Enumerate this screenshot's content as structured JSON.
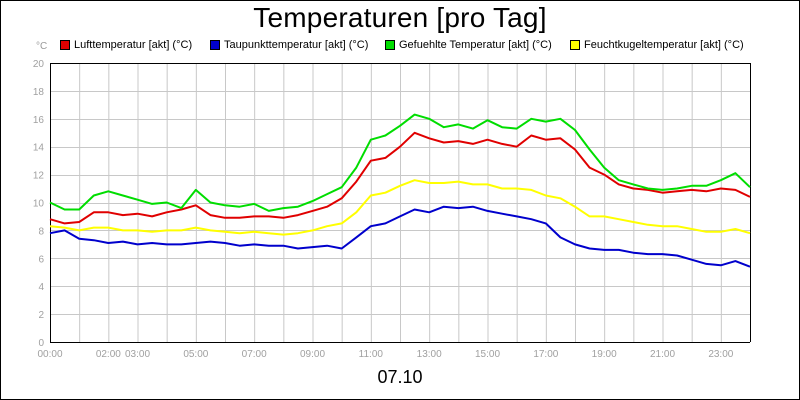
{
  "chart_data": {
    "type": "line",
    "title": "Temperaturen [pro Tag]",
    "y_unit": "°C",
    "date_label": "07.10",
    "ylim": [
      0,
      20
    ],
    "y_ticks": [
      0,
      2,
      4,
      6,
      8,
      10,
      12,
      14,
      16,
      18,
      20
    ],
    "xlim_hours": [
      0,
      24
    ],
    "x_tick_labels": [
      {
        "hour": 0,
        "label": "00:00"
      },
      {
        "hour": 2,
        "label": "02:00"
      },
      {
        "hour": 3,
        "label": "03:00"
      },
      {
        "hour": 5,
        "label": "05:00"
      },
      {
        "hour": 7,
        "label": "07:00"
      },
      {
        "hour": 9,
        "label": "09:00"
      },
      {
        "hour": 11,
        "label": "11:00"
      },
      {
        "hour": 13,
        "label": "13:00"
      },
      {
        "hour": 15,
        "label": "15:00"
      },
      {
        "hour": 17,
        "label": "17:00"
      },
      {
        "hour": 19,
        "label": "19:00"
      },
      {
        "hour": 21,
        "label": "21:00"
      },
      {
        "hour": 23,
        "label": "23:00"
      }
    ],
    "grid": true,
    "legend_position": "top",
    "series": [
      {
        "name": "Lufttemperatur [akt] (°C)",
        "color": "#e00000",
        "points": [
          [
            0,
            8.8
          ],
          [
            0.5,
            8.5
          ],
          [
            1,
            8.6
          ],
          [
            1.5,
            9.3
          ],
          [
            2,
            9.3
          ],
          [
            2.5,
            9.1
          ],
          [
            3,
            9.2
          ],
          [
            3.5,
            9.0
          ],
          [
            4,
            9.3
          ],
          [
            4.5,
            9.5
          ],
          [
            5,
            9.8
          ],
          [
            5.5,
            9.1
          ],
          [
            6,
            8.9
          ],
          [
            6.5,
            8.9
          ],
          [
            7,
            9.0
          ],
          [
            7.5,
            9.0
          ],
          [
            8,
            8.9
          ],
          [
            8.5,
            9.1
          ],
          [
            9,
            9.4
          ],
          [
            9.5,
            9.7
          ],
          [
            10,
            10.3
          ],
          [
            10.5,
            11.5
          ],
          [
            11,
            13.0
          ],
          [
            11.5,
            13.2
          ],
          [
            12,
            14.0
          ],
          [
            12.5,
            15.0
          ],
          [
            13,
            14.6
          ],
          [
            13.5,
            14.3
          ],
          [
            14,
            14.4
          ],
          [
            14.5,
            14.2
          ],
          [
            15,
            14.5
          ],
          [
            15.5,
            14.2
          ],
          [
            16,
            14.0
          ],
          [
            16.5,
            14.8
          ],
          [
            17,
            14.5
          ],
          [
            17.5,
            14.6
          ],
          [
            18,
            13.8
          ],
          [
            18.5,
            12.5
          ],
          [
            19,
            12.0
          ],
          [
            19.5,
            11.3
          ],
          [
            20,
            11.0
          ],
          [
            20.5,
            10.9
          ],
          [
            21,
            10.7
          ],
          [
            21.5,
            10.8
          ],
          [
            22,
            10.9
          ],
          [
            22.5,
            10.8
          ],
          [
            23,
            11.0
          ],
          [
            23.5,
            10.9
          ],
          [
            24,
            10.4
          ]
        ]
      },
      {
        "name": "Taupunkttemperatur [akt] (°C)",
        "color": "#0000cc",
        "points": [
          [
            0,
            7.8
          ],
          [
            0.5,
            8.0
          ],
          [
            1,
            7.4
          ],
          [
            1.5,
            7.3
          ],
          [
            2,
            7.1
          ],
          [
            2.5,
            7.2
          ],
          [
            3,
            7.0
          ],
          [
            3.5,
            7.1
          ],
          [
            4,
            7.0
          ],
          [
            4.5,
            7.0
          ],
          [
            5,
            7.1
          ],
          [
            5.5,
            7.2
          ],
          [
            6,
            7.1
          ],
          [
            6.5,
            6.9
          ],
          [
            7,
            7.0
          ],
          [
            7.5,
            6.9
          ],
          [
            8,
            6.9
          ],
          [
            8.5,
            6.7
          ],
          [
            9,
            6.8
          ],
          [
            9.5,
            6.9
          ],
          [
            10,
            6.7
          ],
          [
            10.5,
            7.5
          ],
          [
            11,
            8.3
          ],
          [
            11.5,
            8.5
          ],
          [
            12,
            9.0
          ],
          [
            12.5,
            9.5
          ],
          [
            13,
            9.3
          ],
          [
            13.5,
            9.7
          ],
          [
            14,
            9.6
          ],
          [
            14.5,
            9.7
          ],
          [
            15,
            9.4
          ],
          [
            15.5,
            9.2
          ],
          [
            16,
            9.0
          ],
          [
            16.5,
            8.8
          ],
          [
            17,
            8.5
          ],
          [
            17.5,
            7.5
          ],
          [
            18,
            7.0
          ],
          [
            18.5,
            6.7
          ],
          [
            19,
            6.6
          ],
          [
            19.5,
            6.6
          ],
          [
            20,
            6.4
          ],
          [
            20.5,
            6.3
          ],
          [
            21,
            6.3
          ],
          [
            21.5,
            6.2
          ],
          [
            22,
            5.9
          ],
          [
            22.5,
            5.6
          ],
          [
            23,
            5.5
          ],
          [
            23.5,
            5.8
          ],
          [
            24,
            5.4
          ]
        ]
      },
      {
        "name": "Gefuehlte Temperatur [akt] (°C)",
        "color": "#00dd00",
        "points": [
          [
            0,
            10.0
          ],
          [
            0.5,
            9.5
          ],
          [
            1,
            9.5
          ],
          [
            1.5,
            10.5
          ],
          [
            2,
            10.8
          ],
          [
            2.5,
            10.5
          ],
          [
            3,
            10.2
          ],
          [
            3.5,
            9.9
          ],
          [
            4,
            10.0
          ],
          [
            4.5,
            9.6
          ],
          [
            5,
            10.9
          ],
          [
            5.5,
            10.0
          ],
          [
            6,
            9.8
          ],
          [
            6.5,
            9.7
          ],
          [
            7,
            9.9
          ],
          [
            7.5,
            9.4
          ],
          [
            8,
            9.6
          ],
          [
            8.5,
            9.7
          ],
          [
            9,
            10.1
          ],
          [
            9.5,
            10.6
          ],
          [
            10,
            11.1
          ],
          [
            10.5,
            12.5
          ],
          [
            11,
            14.5
          ],
          [
            11.5,
            14.8
          ],
          [
            12,
            15.5
          ],
          [
            12.5,
            16.3
          ],
          [
            13,
            16.0
          ],
          [
            13.5,
            15.4
          ],
          [
            14,
            15.6
          ],
          [
            14.5,
            15.3
          ],
          [
            15,
            15.9
          ],
          [
            15.5,
            15.4
          ],
          [
            16,
            15.3
          ],
          [
            16.5,
            16.0
          ],
          [
            17,
            15.8
          ],
          [
            17.5,
            16.0
          ],
          [
            18,
            15.2
          ],
          [
            18.5,
            13.8
          ],
          [
            19,
            12.5
          ],
          [
            19.5,
            11.6
          ],
          [
            20,
            11.3
          ],
          [
            20.5,
            11.0
          ],
          [
            21,
            10.9
          ],
          [
            21.5,
            11.0
          ],
          [
            22,
            11.2
          ],
          [
            22.5,
            11.2
          ],
          [
            23,
            11.6
          ],
          [
            23.5,
            12.1
          ],
          [
            24,
            11.1
          ]
        ]
      },
      {
        "name": "Feuchtkugeltemperatur [akt] (°C)",
        "color": "#ffff00",
        "points": [
          [
            0,
            8.3
          ],
          [
            0.5,
            8.2
          ],
          [
            1,
            8.0
          ],
          [
            1.5,
            8.2
          ],
          [
            2,
            8.2
          ],
          [
            2.5,
            8.0
          ],
          [
            3,
            8.0
          ],
          [
            3.5,
            7.9
          ],
          [
            4,
            8.0
          ],
          [
            4.5,
            8.0
          ],
          [
            5,
            8.2
          ],
          [
            5.5,
            8.0
          ],
          [
            6,
            7.9
          ],
          [
            6.5,
            7.8
          ],
          [
            7,
            7.9
          ],
          [
            7.5,
            7.8
          ],
          [
            8,
            7.7
          ],
          [
            8.5,
            7.8
          ],
          [
            9,
            8.0
          ],
          [
            9.5,
            8.3
          ],
          [
            10,
            8.5
          ],
          [
            10.5,
            9.3
          ],
          [
            11,
            10.5
          ],
          [
            11.5,
            10.7
          ],
          [
            12,
            11.2
          ],
          [
            12.5,
            11.6
          ],
          [
            13,
            11.4
          ],
          [
            13.5,
            11.4
          ],
          [
            14,
            11.5
          ],
          [
            14.5,
            11.3
          ],
          [
            15,
            11.3
          ],
          [
            15.5,
            11.0
          ],
          [
            16,
            11.0
          ],
          [
            16.5,
            10.9
          ],
          [
            17,
            10.5
          ],
          [
            17.5,
            10.3
          ],
          [
            18,
            9.7
          ],
          [
            18.5,
            9.0
          ],
          [
            19,
            9.0
          ],
          [
            19.5,
            8.8
          ],
          [
            20,
            8.6
          ],
          [
            20.5,
            8.4
          ],
          [
            21,
            8.3
          ],
          [
            21.5,
            8.3
          ],
          [
            22,
            8.1
          ],
          [
            22.5,
            7.9
          ],
          [
            23,
            7.9
          ],
          [
            23.5,
            8.1
          ],
          [
            24,
            7.8
          ]
        ]
      }
    ]
  }
}
